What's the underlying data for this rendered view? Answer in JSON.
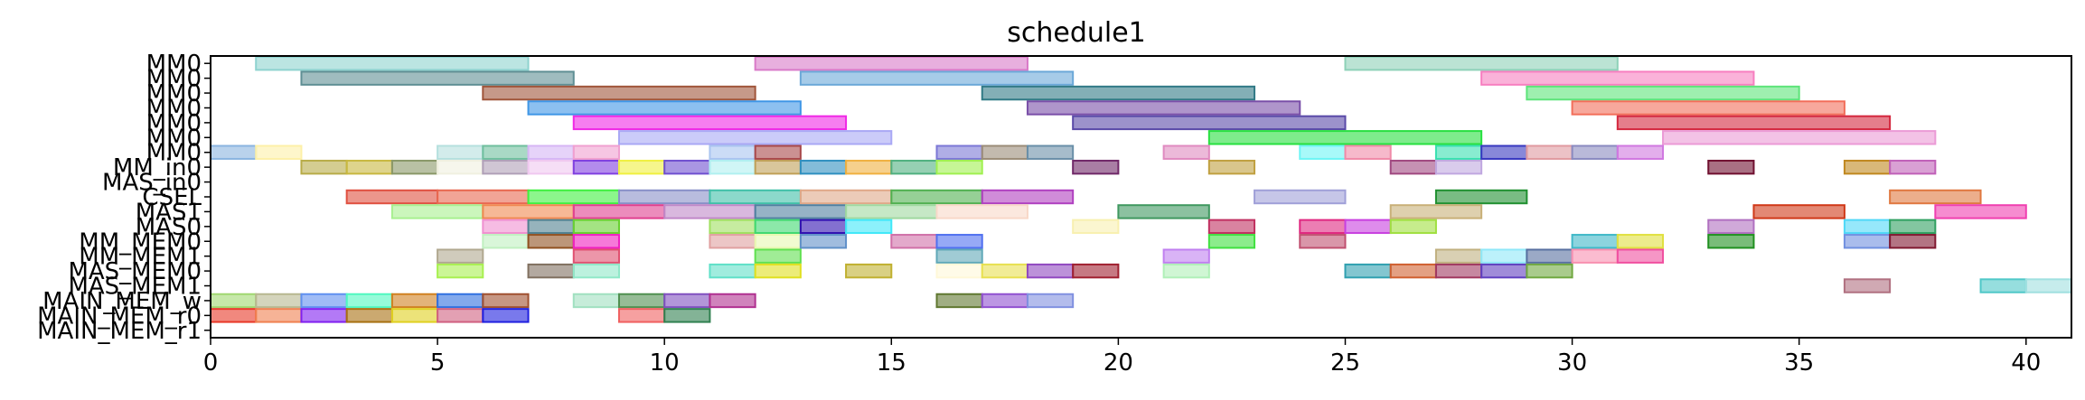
{
  "chart_data": {
    "type": "gantt",
    "title": "schedule1",
    "xlabel": "",
    "ylabel": "",
    "xlim": [
      0,
      41
    ],
    "xticks": [
      0,
      5,
      10,
      15,
      20,
      25,
      30,
      35,
      40
    ],
    "grid": false,
    "rows": [
      "MM0",
      "MM0",
      "MM0",
      "MM0",
      "MM0",
      "MM0",
      "MM0",
      "MM_in0",
      "MAS_in0",
      "CSEL",
      "MAS1",
      "MAS0",
      "MM_MEM0",
      "MM_MEM1",
      "MAS_MEM0",
      "MAS_MEM1",
      "MAIN_MEM_w",
      "MAIN_MEM_r0",
      "MAIN_MEM_r1"
    ],
    "tasks": [
      {
        "row": 0,
        "start": 1,
        "end": 7,
        "color": "#8ed3cf"
      },
      {
        "row": 0,
        "start": 12,
        "end": 18,
        "color": "#d97ac8"
      },
      {
        "row": 0,
        "start": 25,
        "end": 31,
        "color": "#8ed1b8"
      },
      {
        "row": 1,
        "start": 2,
        "end": 8,
        "color": "#5f8f94"
      },
      {
        "row": 1,
        "start": 13,
        "end": 19,
        "color": "#6ba8d8"
      },
      {
        "row": 1,
        "start": 28,
        "end": 34,
        "color": "#f77fc0"
      },
      {
        "row": 2,
        "start": 6,
        "end": 12,
        "color": "#a0553a"
      },
      {
        "row": 2,
        "start": 17,
        "end": 23,
        "color": "#317a86"
      },
      {
        "row": 2,
        "start": 29,
        "end": 35,
        "color": "#5ee47a"
      },
      {
        "row": 3,
        "start": 7,
        "end": 13,
        "color": "#3f96e6"
      },
      {
        "row": 3,
        "start": 18,
        "end": 24,
        "color": "#7a4fa8"
      },
      {
        "row": 3,
        "start": 30,
        "end": 36,
        "color": "#f26e5a"
      },
      {
        "row": 4,
        "start": 8,
        "end": 14,
        "color": "#f028e6"
      },
      {
        "row": 4,
        "start": 19,
        "end": 25,
        "color": "#5a4aa8"
      },
      {
        "row": 4,
        "start": 31,
        "end": 37,
        "color": "#d4283e"
      },
      {
        "row": 5,
        "start": 9,
        "end": 15,
        "color": "#a9a8f5"
      },
      {
        "row": 5,
        "start": 22,
        "end": 28,
        "color": "#28e040"
      },
      {
        "row": 5,
        "start": 32,
        "end": 38,
        "color": "#eb9ad6"
      },
      {
        "row": 6,
        "start": 0,
        "end": 1,
        "color": "#8ab4e0"
      },
      {
        "row": 6,
        "start": 1,
        "end": 2,
        "color": "#fdf0a8"
      },
      {
        "row": 6,
        "start": 5,
        "end": 6,
        "color": "#b5e0de"
      },
      {
        "row": 6,
        "start": 6,
        "end": 7,
        "color": "#6fbf9e"
      },
      {
        "row": 6,
        "start": 7,
        "end": 8,
        "color": "#d6b6f5"
      },
      {
        "row": 6,
        "start": 8,
        "end": 9,
        "color": "#f0a0d0"
      },
      {
        "row": 6,
        "start": 11,
        "end": 12,
        "color": "#a9c4f0"
      },
      {
        "row": 6,
        "start": 12,
        "end": 13,
        "color": "#a8484a"
      },
      {
        "row": 6,
        "start": 16,
        "end": 17,
        "color": "#7c78d6"
      },
      {
        "row": 6,
        "start": 17,
        "end": 18,
        "color": "#9b8c78"
      },
      {
        "row": 6,
        "start": 18,
        "end": 19,
        "color": "#6a8fa8"
      },
      {
        "row": 6,
        "start": 21,
        "end": 22,
        "color": "#e08ac0"
      },
      {
        "row": 6,
        "start": 24,
        "end": 25,
        "color": "#6ef5f5"
      },
      {
        "row": 6,
        "start": 25,
        "end": 26,
        "color": "#f08aa8"
      },
      {
        "row": 6,
        "start": 27,
        "end": 28,
        "color": "#38e0b0"
      },
      {
        "row": 6,
        "start": 28,
        "end": 29,
        "color": "#3838c0"
      },
      {
        "row": 6,
        "start": 29,
        "end": 30,
        "color": "#e09aa0"
      },
      {
        "row": 6,
        "start": 30,
        "end": 31,
        "color": "#8a8ac0"
      },
      {
        "row": 6,
        "start": 31,
        "end": 32,
        "color": "#d078e0"
      },
      {
        "row": 7,
        "start": 2,
        "end": 3,
        "color": "#b8ac48"
      },
      {
        "row": 7,
        "start": 3,
        "end": 4,
        "color": "#c8b840"
      },
      {
        "row": 7,
        "start": 4,
        "end": 5,
        "color": "#8a9868"
      },
      {
        "row": 7,
        "start": 5,
        "end": 6,
        "color": "#f0f0e0"
      },
      {
        "row": 7,
        "start": 6,
        "end": 7,
        "color": "#b0a0b8"
      },
      {
        "row": 7,
        "start": 7,
        "end": 8,
        "color": "#f0c8f0"
      },
      {
        "row": 7,
        "start": 8,
        "end": 9,
        "color": "#8040e0"
      },
      {
        "row": 7,
        "start": 9,
        "end": 10,
        "color": "#f0f040"
      },
      {
        "row": 7,
        "start": 10,
        "end": 11,
        "color": "#7050d0"
      },
      {
        "row": 7,
        "start": 11,
        "end": 12,
        "color": "#b0f0f0"
      },
      {
        "row": 7,
        "start": 12,
        "end": 13,
        "color": "#c0a058"
      },
      {
        "row": 7,
        "start": 13,
        "end": 14,
        "color": "#3090c0"
      },
      {
        "row": 7,
        "start": 14,
        "end": 15,
        "color": "#f0b040"
      },
      {
        "row": 7,
        "start": 15,
        "end": 16,
        "color": "#50b080"
      },
      {
        "row": 7,
        "start": 16,
        "end": 17,
        "color": "#a0f050"
      },
      {
        "row": 7,
        "start": 19,
        "end": 20,
        "color": "#702868"
      },
      {
        "row": 7,
        "start": 22,
        "end": 23,
        "color": "#c0a040"
      },
      {
        "row": 7,
        "start": 26,
        "end": 27,
        "color": "#a04880"
      },
      {
        "row": 7,
        "start": 27,
        "end": 28,
        "color": "#c0a8e0"
      },
      {
        "row": 7,
        "start": 33,
        "end": 34,
        "color": "#701030"
      },
      {
        "row": 7,
        "start": 36,
        "end": 37,
        "color": "#c08820"
      },
      {
        "row": 7,
        "start": 37,
        "end": 38,
        "color": "#c060b8"
      },
      {
        "row": 9,
        "start": 3,
        "end": 5,
        "color": "#e05040"
      },
      {
        "row": 9,
        "start": 5,
        "end": 7,
        "color": "#e86850"
      },
      {
        "row": 9,
        "start": 7,
        "end": 9,
        "color": "#40f040"
      },
      {
        "row": 9,
        "start": 9,
        "end": 11,
        "color": "#8890c8"
      },
      {
        "row": 9,
        "start": 11,
        "end": 13,
        "color": "#40c0a8"
      },
      {
        "row": 9,
        "start": 13,
        "end": 15,
        "color": "#e0a888"
      },
      {
        "row": 9,
        "start": 15,
        "end": 17,
        "color": "#50b050"
      },
      {
        "row": 9,
        "start": 17,
        "end": 19,
        "color": "#b040c0"
      },
      {
        "row": 9,
        "start": 23,
        "end": 25,
        "color": "#a0a0d8"
      },
      {
        "row": 9,
        "start": 27,
        "end": 29,
        "color": "#209030"
      },
      {
        "row": 9,
        "start": 37,
        "end": 39,
        "color": "#e07840"
      },
      {
        "row": 10,
        "start": 4,
        "end": 6,
        "color": "#a8f090"
      },
      {
        "row": 10,
        "start": 6,
        "end": 8,
        "color": "#f08850"
      },
      {
        "row": 10,
        "start": 8,
        "end": 10,
        "color": "#e04090"
      },
      {
        "row": 10,
        "start": 10,
        "end": 12,
        "color": "#c088c8"
      },
      {
        "row": 10,
        "start": 12,
        "end": 14,
        "color": "#5080a0"
      },
      {
        "row": 10,
        "start": 14,
        "end": 16,
        "color": "#a0d8a0"
      },
      {
        "row": 10,
        "start": 16,
        "end": 18,
        "color": "#f8d8c8"
      },
      {
        "row": 10,
        "start": 20,
        "end": 22,
        "color": "#409860"
      },
      {
        "row": 10,
        "start": 26,
        "end": 28,
        "color": "#c8b078"
      },
      {
        "row": 10,
        "start": 34,
        "end": 36,
        "color": "#d03818"
      },
      {
        "row": 10,
        "start": 38,
        "end": 40,
        "color": "#f040b0"
      },
      {
        "row": 11,
        "start": 6,
        "end": 7,
        "color": "#f090d0"
      },
      {
        "row": 11,
        "start": 7,
        "end": 8,
        "color": "#508090"
      },
      {
        "row": 11,
        "start": 8,
        "end": 9,
        "color": "#68d030"
      },
      {
        "row": 11,
        "start": 11,
        "end": 12,
        "color": "#a0e060"
      },
      {
        "row": 11,
        "start": 12,
        "end": 13,
        "color": "#40d870"
      },
      {
        "row": 11,
        "start": 13,
        "end": 14,
        "color": "#3010b0"
      },
      {
        "row": 11,
        "start": 14,
        "end": 15,
        "color": "#40e8f8"
      },
      {
        "row": 11,
        "start": 19,
        "end": 20,
        "color": "#f8f0b0"
      },
      {
        "row": 11,
        "start": 22,
        "end": 23,
        "color": "#c03060"
      },
      {
        "row": 11,
        "start": 24,
        "end": 25,
        "color": "#e02880"
      },
      {
        "row": 11,
        "start": 25,
        "end": 26,
        "color": "#c840e0"
      },
      {
        "row": 11,
        "start": 26,
        "end": 27,
        "color": "#a0e040"
      },
      {
        "row": 11,
        "start": 33,
        "end": 34,
        "color": "#b070c0"
      },
      {
        "row": 11,
        "start": 36,
        "end": 37,
        "color": "#50d8f8"
      },
      {
        "row": 11,
        "start": 37,
        "end": 38,
        "color": "#30a060"
      },
      {
        "row": 12,
        "start": 6,
        "end": 7,
        "color": "#c0f0c0"
      },
      {
        "row": 12,
        "start": 7,
        "end": 8,
        "color": "#905020"
      },
      {
        "row": 12,
        "start": 8,
        "end": 9,
        "color": "#f020c0"
      },
      {
        "row": 12,
        "start": 11,
        "end": 12,
        "color": "#e0a0a0"
      },
      {
        "row": 12,
        "start": 12,
        "end": 13,
        "color": "#e8f8b0"
      },
      {
        "row": 12,
        "start": 13,
        "end": 14,
        "color": "#6090c8"
      },
      {
        "row": 12,
        "start": 15,
        "end": 16,
        "color": "#d070a8"
      },
      {
        "row": 12,
        "start": 16,
        "end": 17,
        "color": "#5070f0"
      },
      {
        "row": 12,
        "start": 22,
        "end": 23,
        "color": "#40e040"
      },
      {
        "row": 12,
        "start": 24,
        "end": 25,
        "color": "#c05070"
      },
      {
        "row": 12,
        "start": 30,
        "end": 31,
        "color": "#40b8c8"
      },
      {
        "row": 12,
        "start": 31,
        "end": 32,
        "color": "#e0e040"
      },
      {
        "row": 12,
        "start": 33,
        "end": 34,
        "color": "#209020"
      },
      {
        "row": 12,
        "start": 36,
        "end": 37,
        "color": "#7090e0"
      },
      {
        "row": 12,
        "start": 37,
        "end": 38,
        "color": "#801830"
      },
      {
        "row": 13,
        "start": 5,
        "end": 6,
        "color": "#b0a890"
      },
      {
        "row": 13,
        "start": 8,
        "end": 9,
        "color": "#e05070"
      },
      {
        "row": 13,
        "start": 12,
        "end": 13,
        "color": "#60e050"
      },
      {
        "row": 13,
        "start": 16,
        "end": 17,
        "color": "#60a8b8"
      },
      {
        "row": 13,
        "start": 21,
        "end": 22,
        "color": "#c080f0"
      },
      {
        "row": 13,
        "start": 27,
        "end": 28,
        "color": "#c0b080"
      },
      {
        "row": 13,
        "start": 28,
        "end": 29,
        "color": "#90e8f8"
      },
      {
        "row": 13,
        "start": 29,
        "end": 30,
        "color": "#5870a0"
      },
      {
        "row": 13,
        "start": 30,
        "end": 31,
        "color": "#f890b0"
      },
      {
        "row": 13,
        "start": 31,
        "end": 32,
        "color": "#f050a0"
      },
      {
        "row": 14,
        "start": 5,
        "end": 6,
        "color": "#a8f050"
      },
      {
        "row": 14,
        "start": 7,
        "end": 8,
        "color": "#807060"
      },
      {
        "row": 14,
        "start": 8,
        "end": 9,
        "color": "#90e8c8"
      },
      {
        "row": 14,
        "start": 11,
        "end": 12,
        "color": "#60e0c8"
      },
      {
        "row": 14,
        "start": 12,
        "end": 13,
        "color": "#e0e020"
      },
      {
        "row": 14,
        "start": 14,
        "end": 15,
        "color": "#c0b030"
      },
      {
        "row": 14,
        "start": 16,
        "end": 17,
        "color": "#fff8d8"
      },
      {
        "row": 14,
        "start": 17,
        "end": 18,
        "color": "#e8e050"
      },
      {
        "row": 14,
        "start": 18,
        "end": 19,
        "color": "#9048c0"
      },
      {
        "row": 14,
        "start": 19,
        "end": 20,
        "color": "#a02030"
      },
      {
        "row": 14,
        "start": 21,
        "end": 22,
        "color": "#b0f0b8"
      },
      {
        "row": 14,
        "start": 25,
        "end": 26,
        "color": "#30a0b0"
      },
      {
        "row": 14,
        "start": 26,
        "end": 27,
        "color": "#d06030"
      },
      {
        "row": 14,
        "start": 27,
        "end": 28,
        "color": "#a03860"
      },
      {
        "row": 14,
        "start": 28,
        "end": 29,
        "color": "#6040c0"
      },
      {
        "row": 14,
        "start": 29,
        "end": 30,
        "color": "#70a840"
      },
      {
        "row": 15,
        "start": 36,
        "end": 37,
        "color": "#b07080"
      },
      {
        "row": 15,
        "start": 39,
        "end": 40,
        "color": "#50c8c8"
      },
      {
        "row": 15,
        "start": 40,
        "end": 41,
        "color": "#a0e0e0"
      },
      {
        "row": 16,
        "start": 0,
        "end": 1,
        "color": "#a0d870"
      },
      {
        "row": 16,
        "start": 1,
        "end": 2,
        "color": "#b8b890"
      },
      {
        "row": 16,
        "start": 2,
        "end": 3,
        "color": "#6090f0"
      },
      {
        "row": 16,
        "start": 3,
        "end": 4,
        "color": "#50f8c0"
      },
      {
        "row": 16,
        "start": 4,
        "end": 5,
        "color": "#d08020"
      },
      {
        "row": 16,
        "start": 5,
        "end": 6,
        "color": "#3070e0"
      },
      {
        "row": 16,
        "start": 6,
        "end": 7,
        "color": "#a05030"
      },
      {
        "row": 16,
        "start": 8,
        "end": 9,
        "color": "#a0e0c0"
      },
      {
        "row": 16,
        "start": 9,
        "end": 10,
        "color": "#509050"
      },
      {
        "row": 16,
        "start": 10,
        "end": 11,
        "color": "#8050c0"
      },
      {
        "row": 16,
        "start": 11,
        "end": 12,
        "color": "#b03090"
      },
      {
        "row": 16,
        "start": 16,
        "end": 17,
        "color": "#607830"
      },
      {
        "row": 16,
        "start": 17,
        "end": 18,
        "color": "#9050d0"
      },
      {
        "row": 16,
        "start": 18,
        "end": 19,
        "color": "#8090e0"
      },
      {
        "row": 17,
        "start": 0,
        "end": 1,
        "color": "#e83828"
      },
      {
        "row": 17,
        "start": 1,
        "end": 2,
        "color": "#f08050"
      },
      {
        "row": 17,
        "start": 2,
        "end": 3,
        "color": "#8020f0"
      },
      {
        "row": 17,
        "start": 3,
        "end": 4,
        "color": "#a87010"
      },
      {
        "row": 17,
        "start": 4,
        "end": 5,
        "color": "#e0d020"
      },
      {
        "row": 17,
        "start": 5,
        "end": 6,
        "color": "#d06080"
      },
      {
        "row": 17,
        "start": 6,
        "end": 7,
        "color": "#2020e0"
      },
      {
        "row": 17,
        "start": 9,
        "end": 10,
        "color": "#f06060"
      },
      {
        "row": 17,
        "start": 10,
        "end": 11,
        "color": "#308050"
      }
    ]
  }
}
